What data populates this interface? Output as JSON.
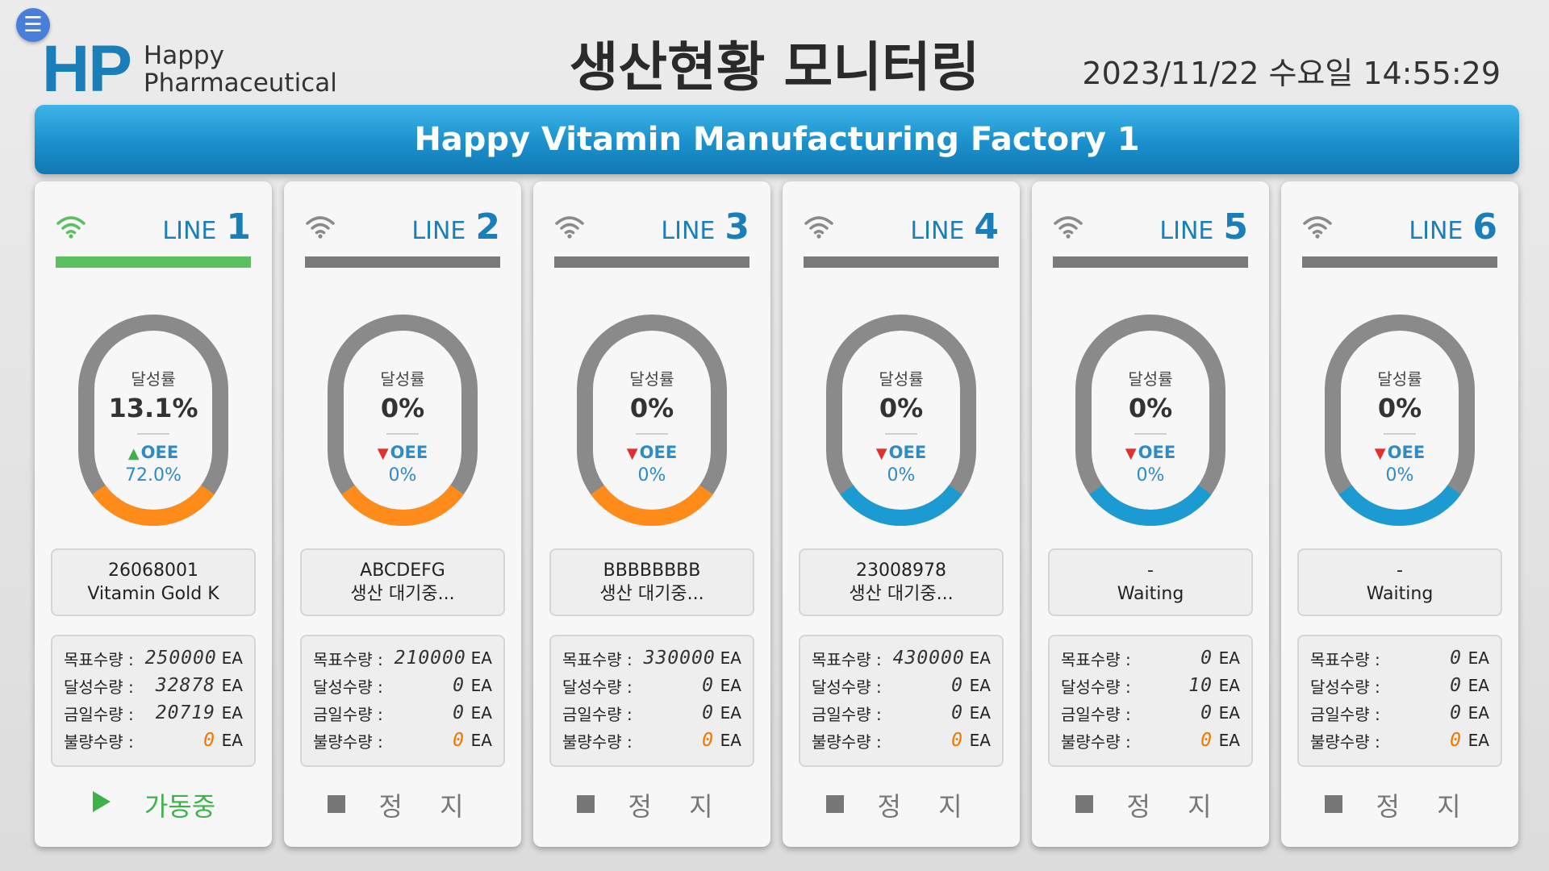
{
  "header": {
    "logo_mark": "HP",
    "logo_line1": "Happy",
    "logo_line2": "Pharmaceutical",
    "title": "생산현황 모니터링",
    "date": "2023/11/22",
    "weekday": "수요일",
    "time": "14:55:29"
  },
  "banner": {
    "title": "Happy Vitamin Manufacturing Factory 1"
  },
  "colors": {
    "accent": "#1a7fb8",
    "running": "#5cbf60",
    "orange": "#ff8c1a",
    "blue": "#1b9bd1",
    "up": "#3eb24a",
    "down": "#e03030"
  },
  "lines": [
    {
      "label": "LINE",
      "number": "1",
      "status": "running",
      "achievement_label": "달성률",
      "achievement": "13.1%",
      "achievement_pct": 13.1,
      "oee_label": "OEE",
      "oee_trend": "up",
      "oee": "72.0%",
      "ring_accent": "orange",
      "code": "26068001",
      "product": "Vitamin Gold K",
      "target_label": "목표수량 :",
      "target": "250000",
      "achieved_label": "달성수량 :",
      "achieved": "32878",
      "today_label": "금일수량 :",
      "today": "20719",
      "defect_label": "불량수량 :",
      "defect": "0",
      "unit": "EA",
      "state_icon": "play-icon",
      "state_text": "가동중"
    },
    {
      "label": "LINE",
      "number": "2",
      "status": "stopped",
      "achievement_label": "달성률",
      "achievement": "0%",
      "achievement_pct": 0,
      "oee_label": "OEE",
      "oee_trend": "down",
      "oee": "0%",
      "ring_accent": "orange",
      "code": "ABCDEFG",
      "product": "생산 대기중...",
      "target_label": "목표수량 :",
      "target": "210000",
      "achieved_label": "달성수량 :",
      "achieved": "0",
      "today_label": "금일수량 :",
      "today": "0",
      "defect_label": "불량수량 :",
      "defect": "0",
      "unit": "EA",
      "state_icon": "stop-icon",
      "state_text": "정 지"
    },
    {
      "label": "LINE",
      "number": "3",
      "status": "stopped",
      "achievement_label": "달성률",
      "achievement": "0%",
      "achievement_pct": 0,
      "oee_label": "OEE",
      "oee_trend": "down",
      "oee": "0%",
      "ring_accent": "orange",
      "code": "BBBBBBBB",
      "product": "생산 대기중...",
      "target_label": "목표수량 :",
      "target": "330000",
      "achieved_label": "달성수량 :",
      "achieved": "0",
      "today_label": "금일수량 :",
      "today": "0",
      "defect_label": "불량수량 :",
      "defect": "0",
      "unit": "EA",
      "state_icon": "stop-icon",
      "state_text": "정 지"
    },
    {
      "label": "LINE",
      "number": "4",
      "status": "stopped",
      "achievement_label": "달성률",
      "achievement": "0%",
      "achievement_pct": 0,
      "oee_label": "OEE",
      "oee_trend": "down",
      "oee": "0%",
      "ring_accent": "blue",
      "code": "23008978",
      "product": "생산 대기중...",
      "target_label": "목표수량 :",
      "target": "430000",
      "achieved_label": "달성수량 :",
      "achieved": "0",
      "today_label": "금일수량 :",
      "today": "0",
      "defect_label": "불량수량 :",
      "defect": "0",
      "unit": "EA",
      "state_icon": "stop-icon",
      "state_text": "정 지"
    },
    {
      "label": "LINE",
      "number": "5",
      "status": "stopped",
      "achievement_label": "달성률",
      "achievement": "0%",
      "achievement_pct": 0,
      "oee_label": "OEE",
      "oee_trend": "down",
      "oee": "0%",
      "ring_accent": "blue",
      "code": "-",
      "product": "Waiting",
      "target_label": "목표수량 :",
      "target": "0",
      "achieved_label": "달성수량 :",
      "achieved": "10",
      "today_label": "금일수량 :",
      "today": "0",
      "defect_label": "불량수량 :",
      "defect": "0",
      "unit": "EA",
      "state_icon": "stop-icon",
      "state_text": "정 지"
    },
    {
      "label": "LINE",
      "number": "6",
      "status": "stopped",
      "achievement_label": "달성률",
      "achievement": "0%",
      "achievement_pct": 0,
      "oee_label": "OEE",
      "oee_trend": "down",
      "oee": "0%",
      "ring_accent": "blue",
      "code": "-",
      "product": "Waiting",
      "target_label": "목표수량 :",
      "target": "0",
      "achieved_label": "달성수량 :",
      "achieved": "0",
      "today_label": "금일수량 :",
      "today": "0",
      "defect_label": "불량수량 :",
      "defect": "0",
      "unit": "EA",
      "state_icon": "stop-icon",
      "state_text": "정 지"
    }
  ]
}
